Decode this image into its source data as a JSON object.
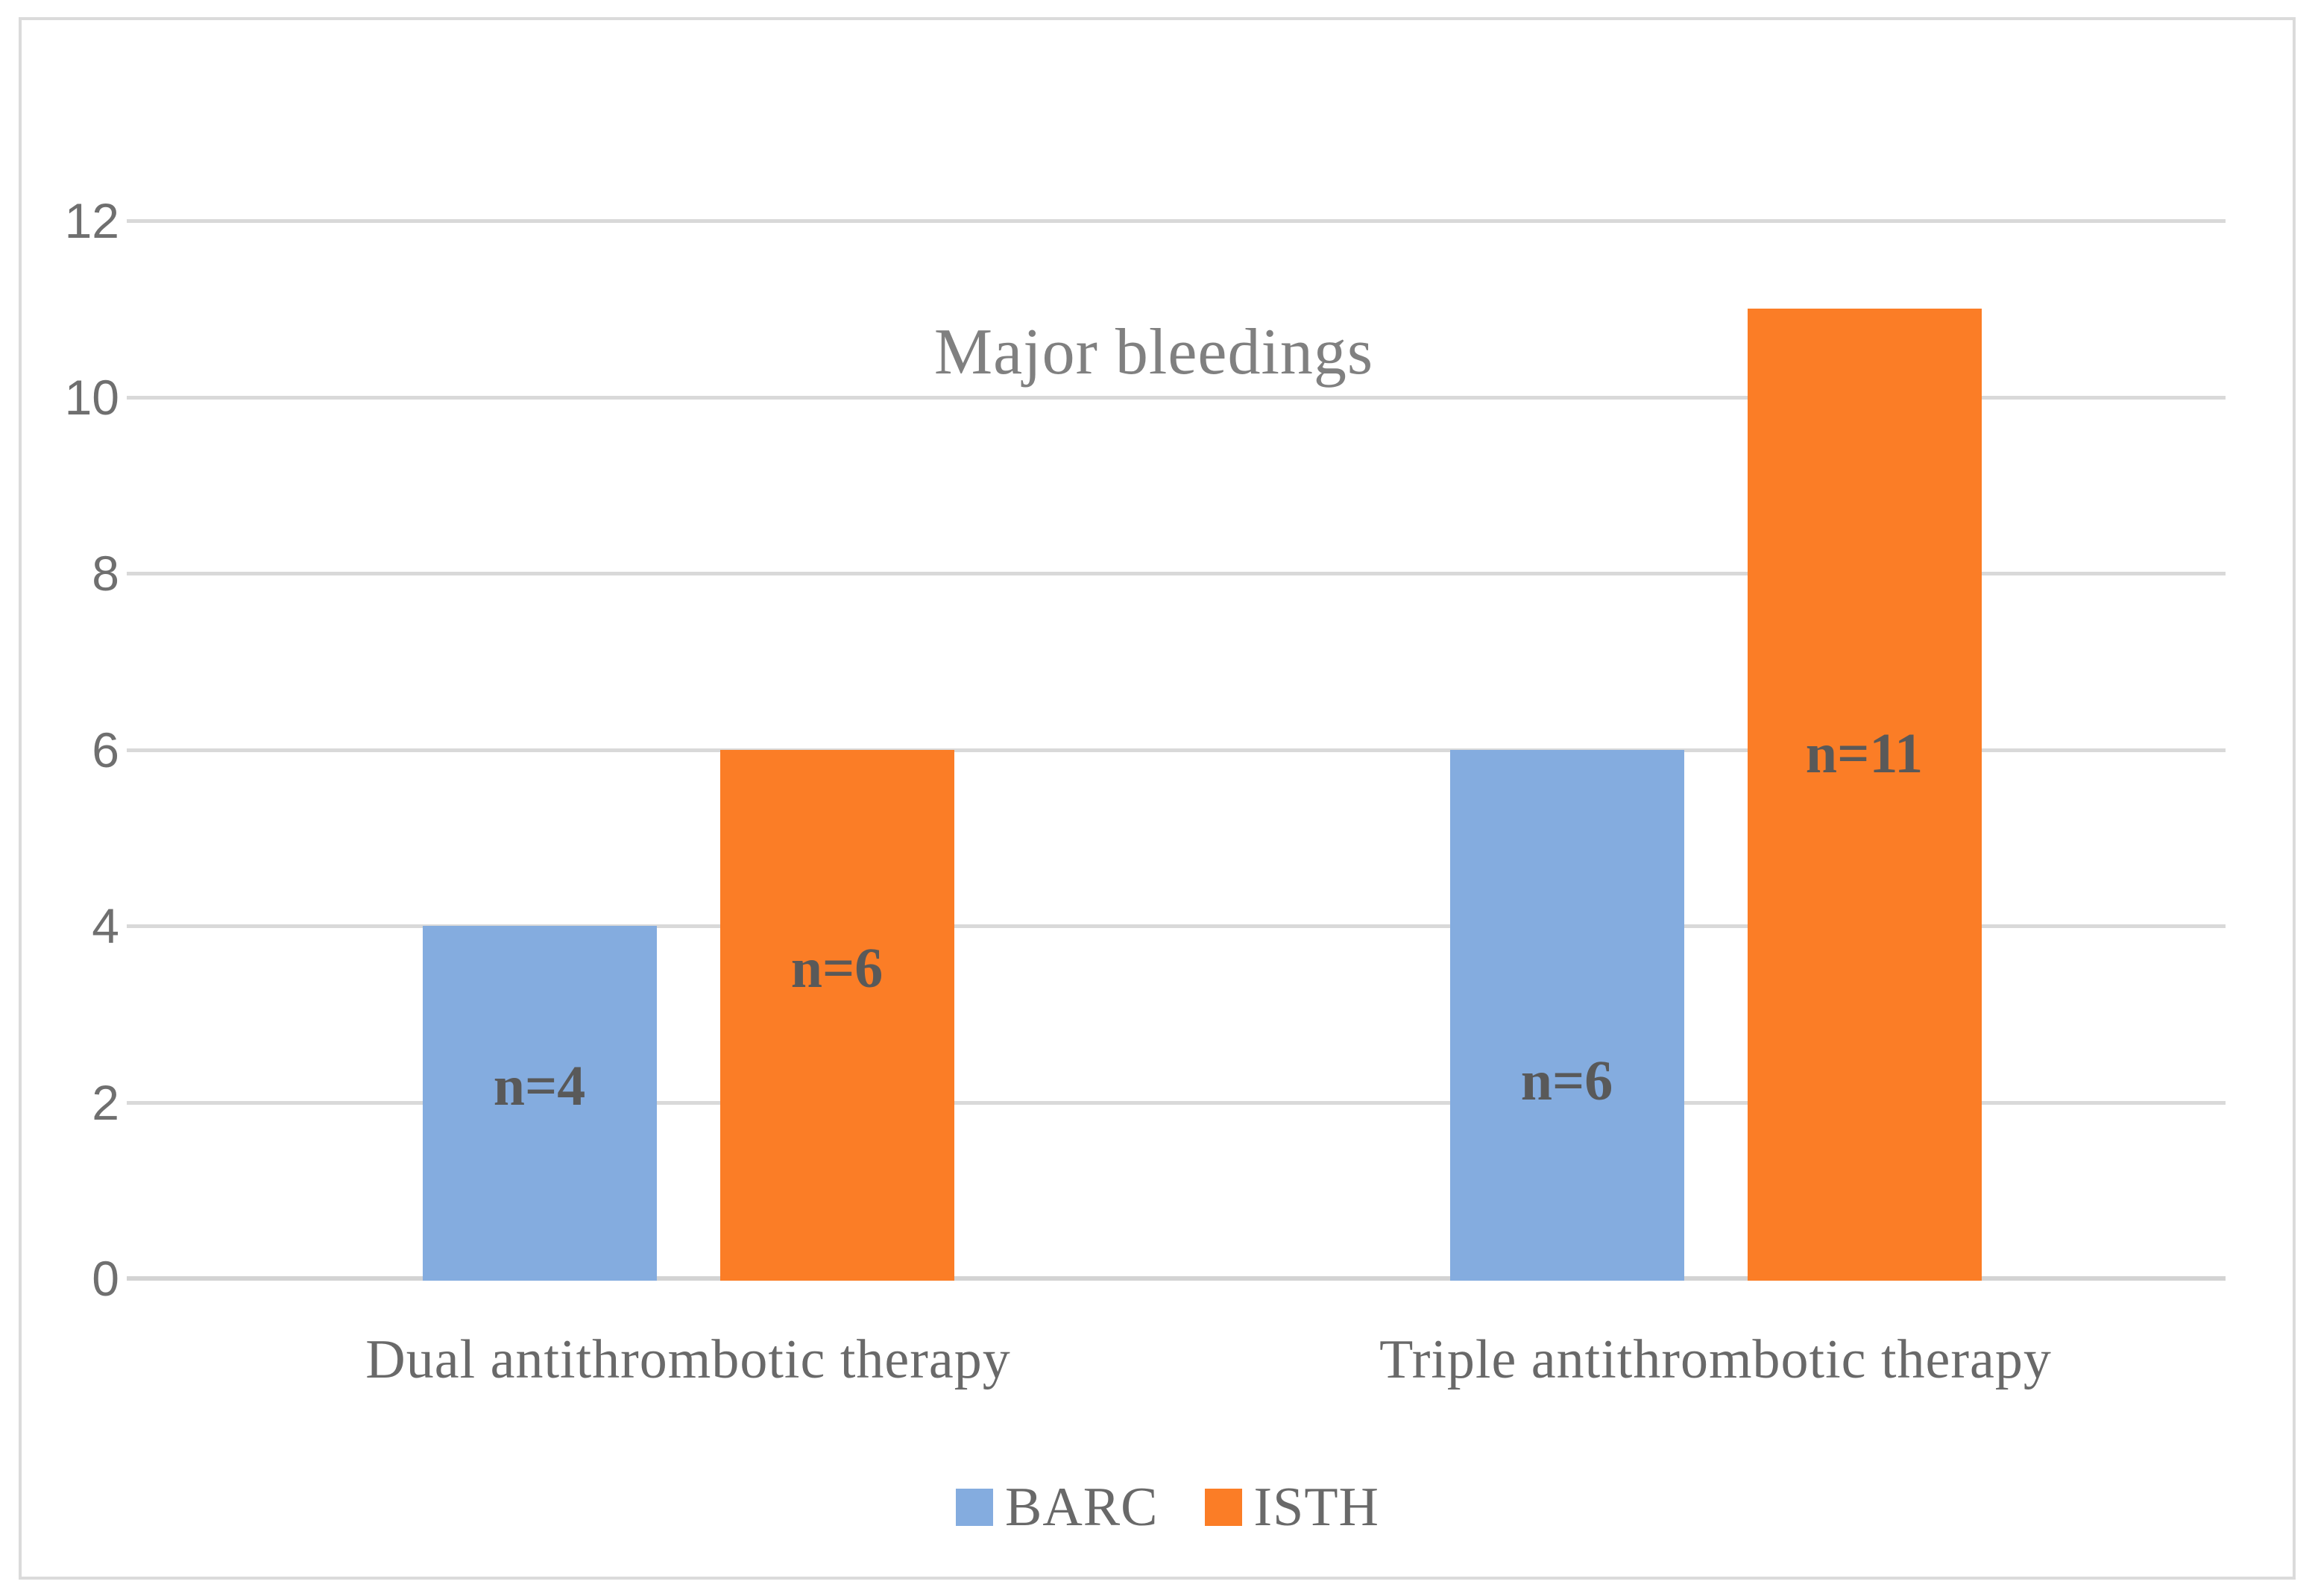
{
  "chart_data": {
    "type": "bar",
    "title": "Major bleedings",
    "categories": [
      "Dual antithrombotic therapy",
      "Triple antithrombotic therapy"
    ],
    "series": [
      {
        "name": "BARC",
        "color": "#84ACDF",
        "values": [
          4,
          6
        ],
        "labels": [
          "n=4",
          "n=6"
        ]
      },
      {
        "name": "ISTH",
        "color": "#FB7D26",
        "values": [
          6,
          11
        ],
        "labels": [
          "n=6",
          "n=11"
        ]
      }
    ],
    "yticks": [
      0,
      2,
      4,
      6,
      8,
      10,
      12
    ],
    "ylim": [
      0,
      12
    ],
    "xlabel": "",
    "ylabel": "",
    "grid": "horizontal",
    "legend_position": "bottom-center",
    "data_label_value_pos": [
      [
        2.18,
        2.24
      ],
      [
        3.52,
        5.95
      ]
    ],
    "colors": {
      "barc_blue": "#84ACDF",
      "isth_orange": "#FB7D26",
      "gridline": "#D9D9D9",
      "axis_line": "#D3D3D3",
      "outer_border": "#DBDBDB",
      "title_text": "#808080",
      "tick_text": "#6F6F6F",
      "category_text": "#696969",
      "data_label_text": "#595959",
      "background": "#FFFFFF"
    }
  }
}
